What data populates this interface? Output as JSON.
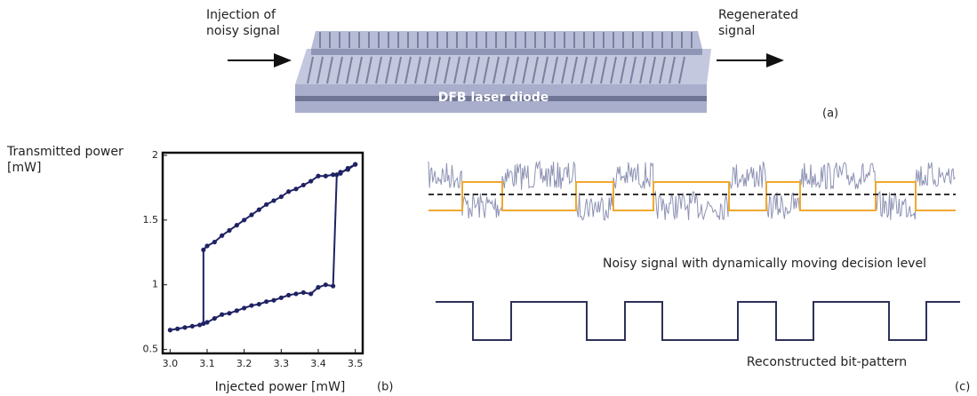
{
  "diagram": {
    "input_label": "Injection of noisy signal",
    "output_label": "Regenerated signal",
    "device_label": "DFB laser diode",
    "panel_label": "(a)"
  },
  "chart_data": {
    "type": "line",
    "xlabel": "Injected power [mW]",
    "ylabel": "Transmitted power [mW]",
    "panel_label": "(b)",
    "color": "#1f2263",
    "xlim": [
      2.98,
      3.52
    ],
    "ylim": [
      0.47,
      2.02
    ],
    "xticks": [
      {
        "value": 3.0,
        "label": "3.0"
      },
      {
        "value": 3.1,
        "label": "3.1"
      },
      {
        "value": 3.2,
        "label": "3.2"
      },
      {
        "value": 3.3,
        "label": "3.3"
      },
      {
        "value": 3.4,
        "label": "3.4"
      },
      {
        "value": 3.5,
        "label": "3.5"
      }
    ],
    "yticks": [
      0.5,
      1,
      1.5,
      2
    ],
    "series": [
      {
        "x": [
          3.0,
          3.02,
          3.04,
          3.06,
          3.08,
          3.1,
          3.12,
          3.14,
          3.16,
          3.18,
          3.2,
          3.22,
          3.24,
          3.26,
          3.28,
          3.3,
          3.32,
          3.34,
          3.36,
          3.38,
          3.4,
          3.42,
          3.44,
          3.45,
          3.46,
          3.48,
          3.5
        ],
        "values": [
          0.65,
          0.66,
          0.67,
          0.68,
          0.69,
          0.71,
          0.74,
          0.77,
          0.78,
          0.8,
          0.82,
          0.84,
          0.85,
          0.87,
          0.88,
          0.9,
          0.92,
          0.93,
          0.94,
          0.93,
          0.98,
          1.0,
          0.99,
          1.85,
          1.87,
          1.89,
          1.93
        ]
      },
      {
        "x": [
          3.5,
          3.48,
          3.46,
          3.44,
          3.42,
          3.4,
          3.38,
          3.36,
          3.34,
          3.32,
          3.3,
          3.28,
          3.26,
          3.24,
          3.22,
          3.2,
          3.18,
          3.16,
          3.14,
          3.12,
          3.1,
          3.09,
          3.09
        ],
        "values": [
          1.93,
          1.9,
          1.86,
          1.85,
          1.84,
          1.84,
          1.8,
          1.77,
          1.74,
          1.72,
          1.68,
          1.65,
          1.62,
          1.58,
          1.54,
          1.5,
          1.46,
          1.42,
          1.38,
          1.33,
          1.3,
          1.27,
          0.7
        ]
      }
    ]
  },
  "signals": {
    "noisy_caption": "Noisy signal with dynamically moving decision level",
    "reconstructed_caption": "Reconstructed bit-pattern",
    "panel_label": "(c)"
  }
}
